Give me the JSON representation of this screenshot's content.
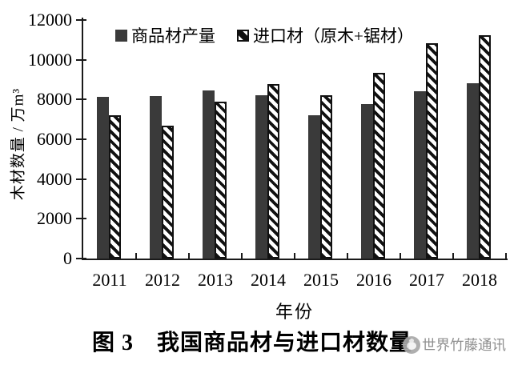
{
  "chart_data": {
    "type": "bar",
    "title": "图 3　我国商品材与进口材数量",
    "categories": [
      "2011",
      "2012",
      "2013",
      "2014",
      "2015",
      "2016",
      "2017",
      "2018"
    ],
    "series": [
      {
        "name": "商品材产量",
        "style": "solid",
        "color": "#3a3a3a",
        "values": [
          8146,
          8175,
          8438,
          8233,
          7200,
          7776,
          8398,
          8811
        ]
      },
      {
        "name": "进口材（原木+锯材）",
        "style": "diagonal-hatch",
        "color": "#111111",
        "values": [
          7220,
          6700,
          7900,
          8790,
          8230,
          9340,
          10850,
          11230
        ]
      }
    ],
    "xlabel": "年份",
    "ylabel": "木材数量 / 万m³",
    "ylim": [
      0,
      12000
    ],
    "yticks": [
      0,
      2000,
      4000,
      6000,
      8000,
      10000,
      12000
    ],
    "legend_position": "top-center-inside",
    "grid": false
  },
  "caption": {
    "text": "图 3　我国商品材与进口材数量"
  },
  "watermark": {
    "text": "世界竹藤通讯",
    "logo": "world-bamboo-rattan-logo"
  }
}
